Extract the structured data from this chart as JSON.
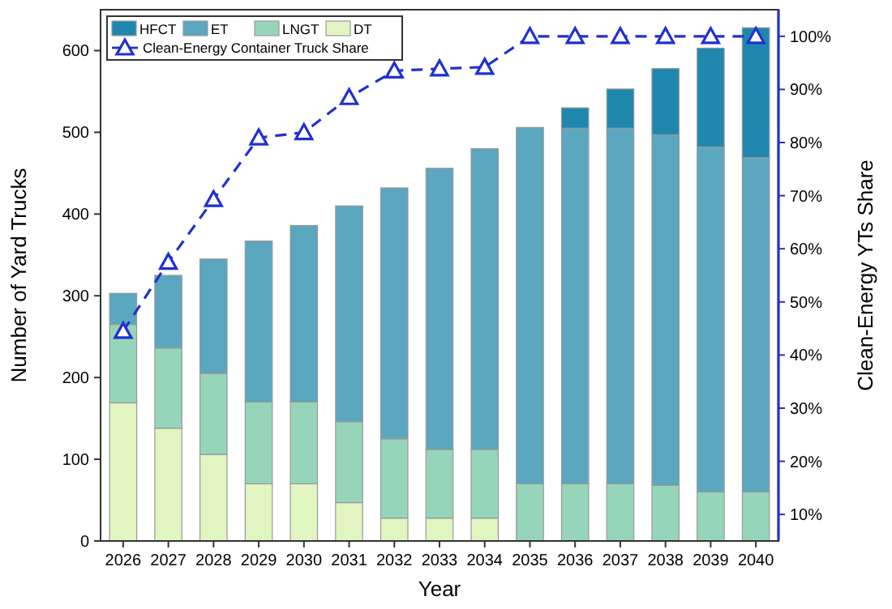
{
  "chart_data": {
    "type": "bar",
    "stacked": true,
    "xlabel": "Year",
    "ylabel": "Number of Yard Trucks",
    "y2label": "Clean-Energy YTs Share",
    "categories": [
      "2026",
      "2027",
      "2028",
      "2029",
      "2030",
      "2031",
      "2032",
      "2033",
      "2034",
      "2035",
      "2036",
      "2037",
      "2038",
      "2039",
      "2040"
    ],
    "ylim": [
      0,
      650
    ],
    "yticks": [
      0,
      100,
      200,
      300,
      400,
      500,
      600
    ],
    "y2lim": [
      5,
      105
    ],
    "y2ticks": [
      {
        "value": 10,
        "label": "10%"
      },
      {
        "value": 20,
        "label": "20%"
      },
      {
        "value": 30,
        "label": "30%"
      },
      {
        "value": 40,
        "label": "40%"
      },
      {
        "value": 50,
        "label": "50%"
      },
      {
        "value": 60,
        "label": "60%"
      },
      {
        "value": 70,
        "label": "70%"
      },
      {
        "value": 80,
        "label": "80%"
      },
      {
        "value": 90,
        "label": "90%"
      },
      {
        "value": 100,
        "label": "100%"
      }
    ],
    "legend": "top left",
    "series": [
      {
        "name": "DT",
        "color": "#e0f5c0",
        "values": [
          169,
          138,
          106,
          70,
          70,
          47,
          28,
          28,
          28,
          0,
          0,
          0,
          0,
          0,
          0
        ]
      },
      {
        "name": "LNGT",
        "color": "#96d5b9",
        "values": [
          96,
          98,
          99,
          100,
          100,
          99,
          97,
          84,
          84,
          70,
          70,
          70,
          68,
          60,
          60
        ]
      },
      {
        "name": "ET",
        "color": "#5aa7bf",
        "values": [
          38,
          89,
          140,
          197,
          216,
          264,
          307,
          344,
          368,
          436,
          435,
          435,
          429,
          422,
          409
        ]
      },
      {
        "name": "HFCT",
        "color": "#1f87ae",
        "values": [
          0,
          0,
          0,
          0,
          0,
          0,
          0,
          0,
          0,
          0,
          25,
          48,
          81,
          121,
          159
        ]
      },
      {
        "name": "Clean-Energy Container Truck Share",
        "type": "line",
        "axis": "y2",
        "color": "#2030d0",
        "marker": "triangle",
        "line_style": "dashed",
        "values": [
          44.5,
          57.5,
          69.3,
          80.9,
          81.9,
          88.5,
          93.5,
          93.9,
          94.2,
          100,
          100,
          100,
          100,
          100,
          100
        ]
      }
    ]
  }
}
